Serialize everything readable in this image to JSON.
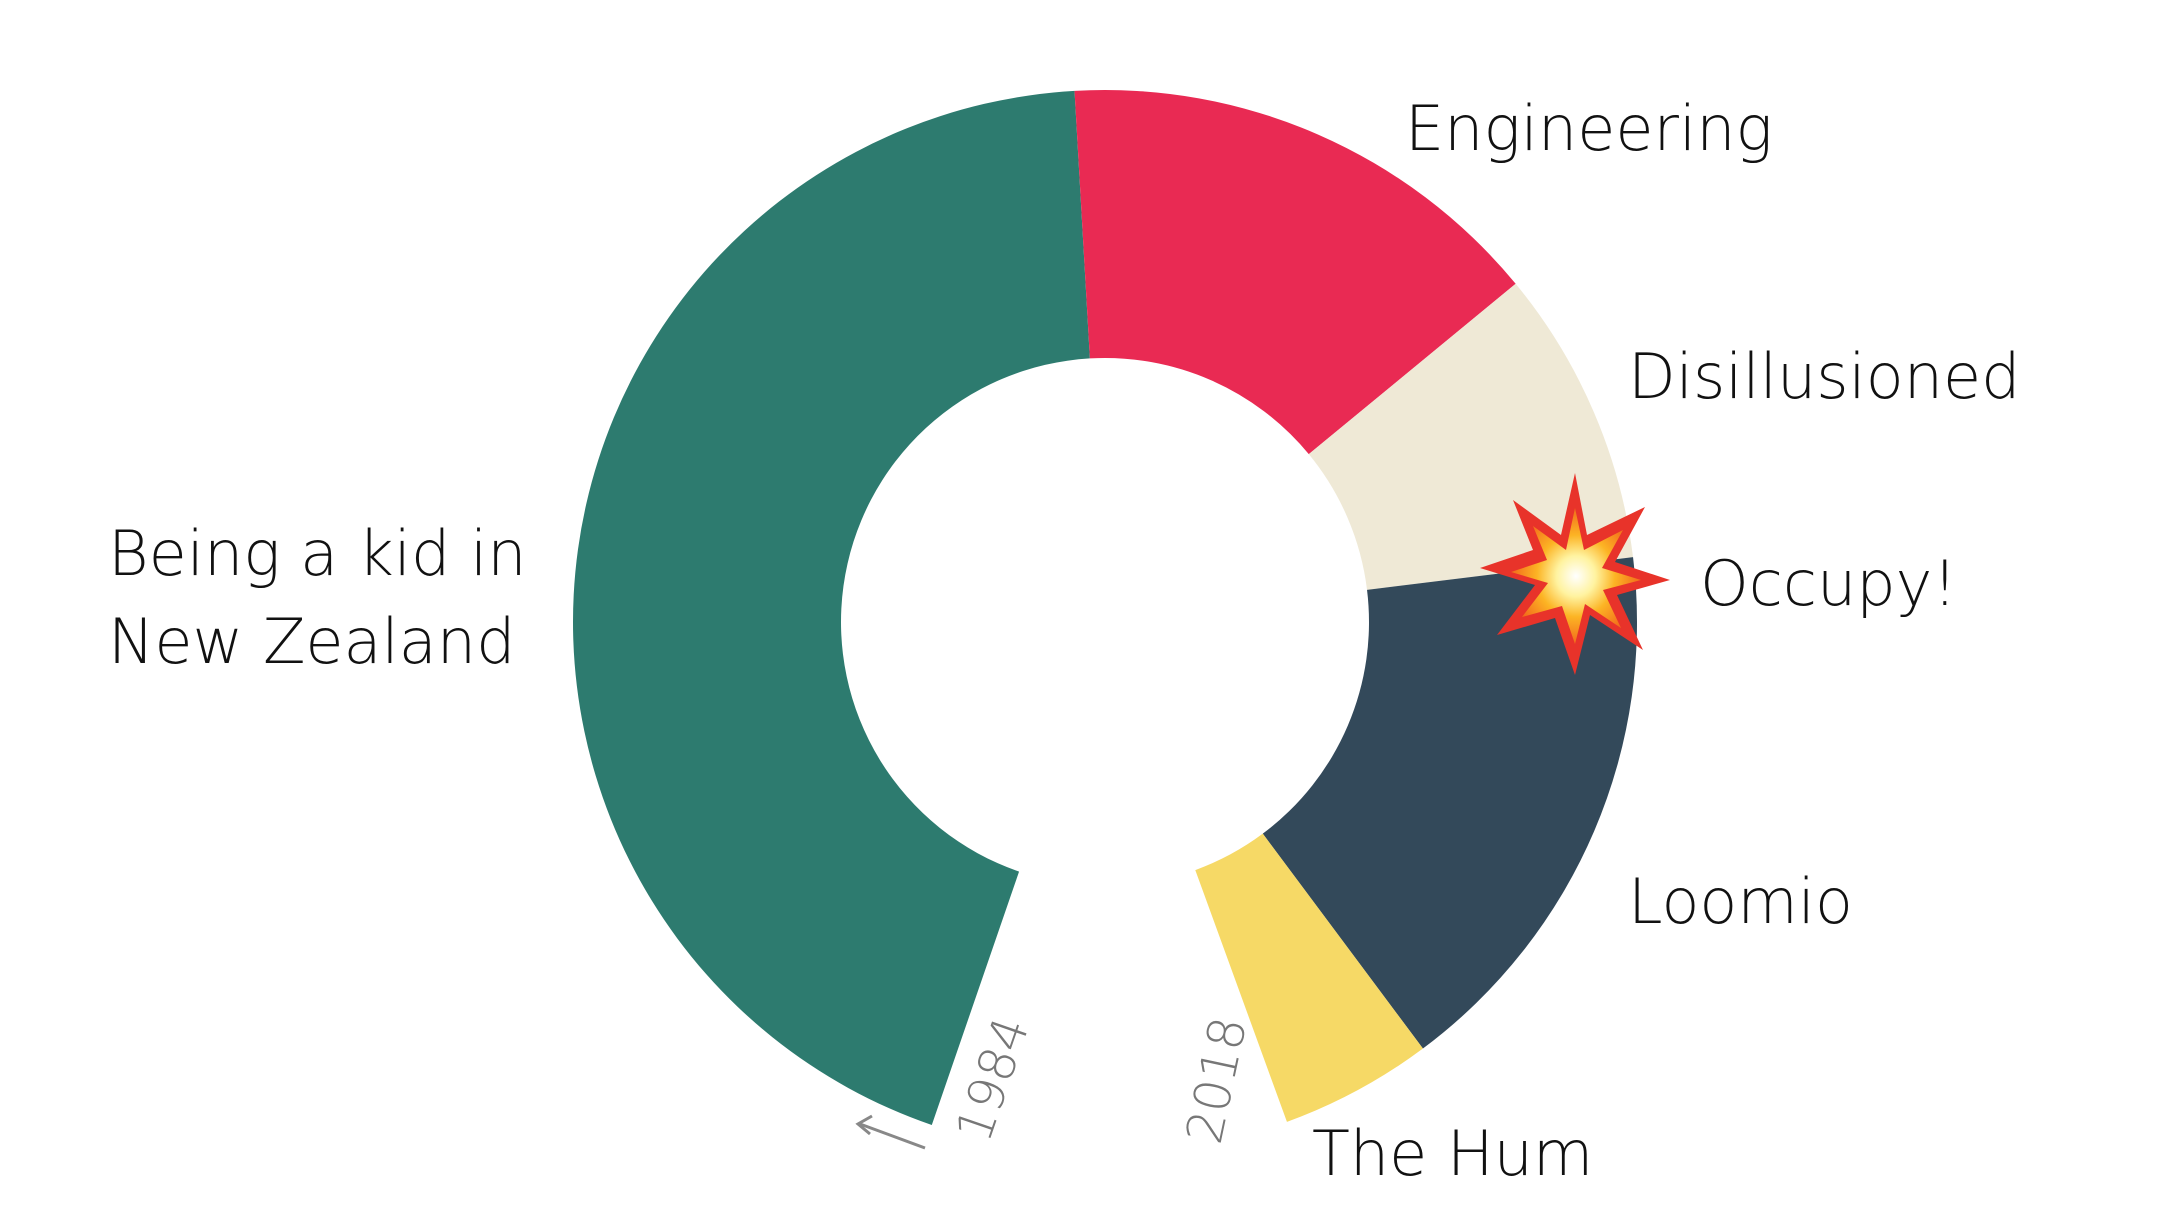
{
  "chart_data": {
    "type": "pie",
    "variant": "donut",
    "start_label": "1984",
    "end_label": "2018",
    "segments": [
      {
        "label": "Being a kid in New Zealand",
        "label_lines": [
          "Being a kid in",
          "New Zealand"
        ],
        "start": 1984,
        "end": 2001,
        "color": "#2d7b6f"
      },
      {
        "label": "Engineering",
        "label_lines": [
          "Engineering"
        ],
        "start": 2001,
        "end": 2006.8,
        "color": "#e92a53"
      },
      {
        "label": "Disillusioned",
        "label_lines": [
          "Disillusioned"
        ],
        "start": 2006.8,
        "end": 2010.3,
        "color": "#efe9d6"
      },
      {
        "label": "Occupy!",
        "label_lines": [
          "Occupy!"
        ],
        "start": 2010.3,
        "end": 2010.3,
        "color": "#e8332a",
        "marker": "explosion-icon"
      },
      {
        "label": "Loomio",
        "label_lines": [
          "Loomio"
        ],
        "start": 2010.3,
        "end": 2016.8,
        "color": "#33495a"
      },
      {
        "label": "The Hum",
        "label_lines": [
          "The Hum"
        ],
        "start": 2016.8,
        "end": 2018.6,
        "color": "#f6d966"
      }
    ]
  }
}
